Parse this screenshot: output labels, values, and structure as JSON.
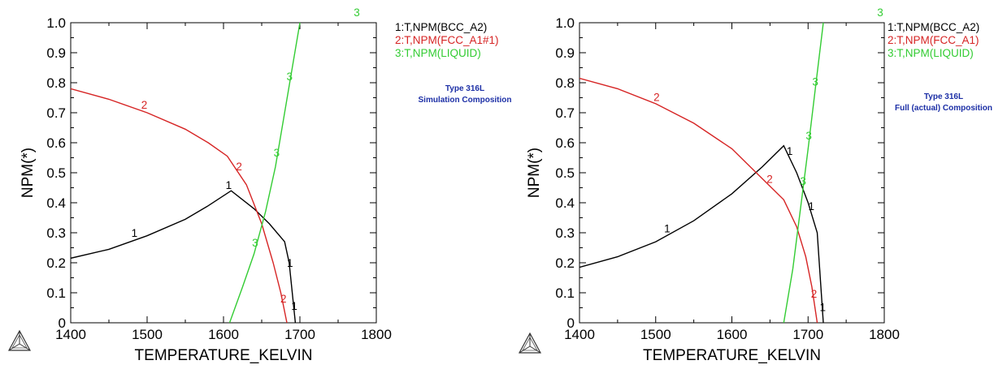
{
  "colors": {
    "series_1": "#000000",
    "series_2": "#d62424",
    "series_3": "#33cc33",
    "annotation": "#1c2fa6"
  },
  "icons": [
    "thermo-calc-logo-icon"
  ],
  "chart_data": [
    {
      "type": "line",
      "xlabel": "TEMPERATURE_KELVIN",
      "ylabel": "NPM(*)",
      "xlim": [
        1400,
        1800
      ],
      "ylim": [
        0,
        1.0
      ],
      "x_ticks": [
        "1400",
        "1500",
        "1600",
        "1700",
        "1800"
      ],
      "y_ticks": [
        "0",
        "0.1",
        "0.2",
        "0.3",
        "0.4",
        "0.5",
        "0.6",
        "0.7",
        "0.8",
        "0.9",
        "1.0"
      ],
      "grid": false,
      "legend_position": "right",
      "annotation": [
        "Type 316L",
        "Simulation Composition"
      ],
      "series": [
        {
          "name": "1:T,NPM(BCC_A2)",
          "curve_label": "1",
          "label_count": 4,
          "x": [
            1400,
            1450,
            1500,
            1550,
            1580,
            1610,
            1640,
            1660,
            1680,
            1686,
            1694
          ],
          "y": [
            0.215,
            0.245,
            0.29,
            0.345,
            0.39,
            0.44,
            0.38,
            0.33,
            0.27,
            0.2,
            0.0
          ]
        },
        {
          "name": "2:T,NPM(FCC_A1#1)",
          "curve_label": "2",
          "label_count": 3,
          "x": [
            1400,
            1450,
            1500,
            1550,
            1580,
            1605,
            1630,
            1650,
            1665,
            1675,
            1683
          ],
          "y": [
            0.78,
            0.745,
            0.7,
            0.645,
            0.6,
            0.555,
            0.46,
            0.33,
            0.2,
            0.1,
            0.0
          ]
        },
        {
          "name": "3:T,NPM(LIQUID)",
          "curve_label": "3",
          "label_count": 4,
          "x": [
            1608,
            1625,
            1640,
            1655,
            1668,
            1680,
            1690,
            1700
          ],
          "y": [
            0.0,
            0.12,
            0.23,
            0.37,
            0.52,
            0.7,
            0.85,
            1.0
          ]
        }
      ]
    },
    {
      "type": "line",
      "xlabel": "TEMPERATURE_KELVIN",
      "ylabel": "NPM(*)",
      "xlim": [
        1400,
        1800
      ],
      "ylim": [
        0,
        1.0
      ],
      "x_ticks": [
        "1400",
        "1500",
        "1600",
        "1700",
        "1800"
      ],
      "y_ticks": [
        "0",
        "0.1",
        "0.2",
        "0.3",
        "0.4",
        "0.5",
        "0.6",
        "0.7",
        "0.8",
        "0.9",
        "1.0"
      ],
      "grid": false,
      "legend_position": "right",
      "annotation": [
        "Type 316L",
        "Full (actual) Composition"
      ],
      "series": [
        {
          "name": "1:T,NPM(BCC_A2)",
          "curve_label": "1",
          "label_count": 4,
          "x": [
            1400,
            1450,
            1500,
            1550,
            1600,
            1640,
            1668,
            1685,
            1700,
            1712,
            1720
          ],
          "y": [
            0.185,
            0.22,
            0.27,
            0.34,
            0.43,
            0.52,
            0.59,
            0.5,
            0.4,
            0.3,
            0.0
          ]
        },
        {
          "name": "2:T,NPM(FCC_A1)",
          "curve_label": "2",
          "label_count": 3,
          "x": [
            1400,
            1450,
            1500,
            1550,
            1600,
            1640,
            1668,
            1685,
            1697,
            1705,
            1712
          ],
          "y": [
            0.815,
            0.78,
            0.73,
            0.665,
            0.58,
            0.48,
            0.41,
            0.32,
            0.22,
            0.12,
            0.0
          ]
        },
        {
          "name": "3:T,NPM(LIQUID)",
          "curve_label": "3",
          "label_count": 4,
          "x": [
            1668,
            1680,
            1690,
            1700,
            1710,
            1720
          ],
          "y": [
            0.0,
            0.18,
            0.38,
            0.58,
            0.79,
            1.0
          ]
        }
      ]
    }
  ]
}
